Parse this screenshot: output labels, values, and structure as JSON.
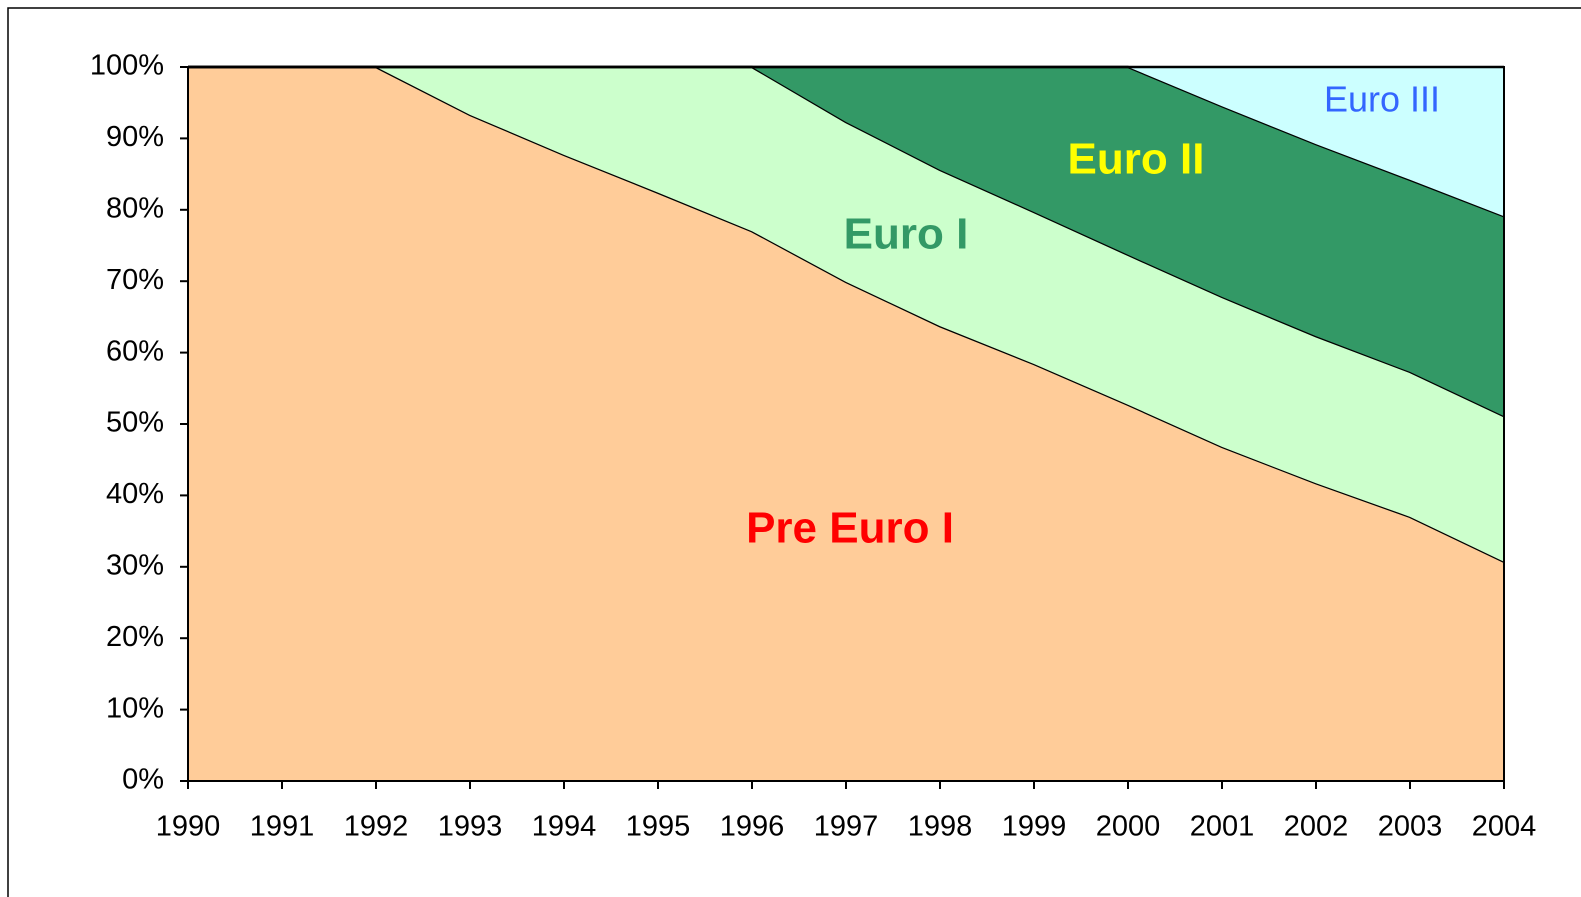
{
  "chart_data": {
    "type": "stacked_area",
    "categories": [
      "1990",
      "1991",
      "1992",
      "1993",
      "1994",
      "1995",
      "1996",
      "1997",
      "1998",
      "1999",
      "2000",
      "2001",
      "2002",
      "2003",
      "2004"
    ],
    "series": [
      {
        "name": "Pre Euro I",
        "color": "#ffcc99",
        "label_color": "#ff0000",
        "values": [
          100,
          100,
          100,
          93.3,
          87.7,
          82.4,
          77,
          69.9,
          63.7,
          58.4,
          52.7,
          46.8,
          41.7,
          37,
          30.7
        ]
      },
      {
        "name": "Euro I",
        "color": "#ccffcc",
        "label_color": "#339966",
        "values": [
          0,
          0,
          0,
          6.7,
          12.3,
          17.6,
          23,
          22.4,
          21.9,
          21.3,
          21,
          21,
          20.6,
          20.3,
          20.4
        ]
      },
      {
        "name": "Euro II",
        "color": "#339966",
        "label_color": "#ffff00",
        "values": [
          0,
          0,
          0,
          0,
          0,
          0,
          0,
          7.7,
          14.4,
          20.3,
          26.3,
          26.7,
          26.9,
          26.9,
          28
        ]
      },
      {
        "name": "Euro III",
        "color": "#ccffff",
        "label_color": "#3366ff",
        "values": [
          0,
          0,
          0,
          0,
          0,
          0,
          0,
          0,
          0,
          0,
          0,
          5.5,
          10.8,
          15.8,
          20.9
        ]
      }
    ],
    "ylim": [
      0,
      100
    ],
    "yticks": [
      {
        "value": 0,
        "label": "0%"
      },
      {
        "value": 10,
        "label": "10%"
      },
      {
        "value": 20,
        "label": "20%"
      },
      {
        "value": 30,
        "label": "30%"
      },
      {
        "value": 40,
        "label": "40%"
      },
      {
        "value": 50,
        "label": "50%"
      },
      {
        "value": 60,
        "label": "60%"
      },
      {
        "value": 70,
        "label": "70%"
      },
      {
        "value": 80,
        "label": "80%"
      },
      {
        "value": 90,
        "label": "90%"
      },
      {
        "value": 100,
        "label": "100%"
      }
    ],
    "grid": false
  }
}
